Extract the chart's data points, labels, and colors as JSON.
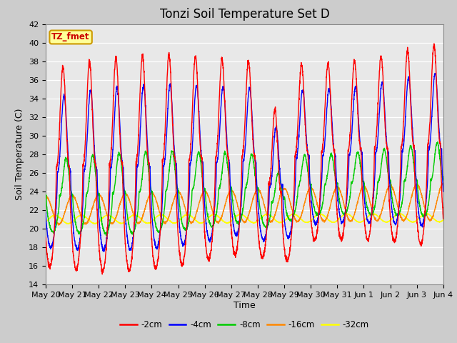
{
  "title": "Tonzi Soil Temperature Set D",
  "xlabel": "Time",
  "ylabel": "Soil Temperature (C)",
  "ylim": [
    14,
    42
  ],
  "yticks": [
    14,
    16,
    18,
    20,
    22,
    24,
    26,
    28,
    30,
    32,
    34,
    36,
    38,
    40,
    42
  ],
  "xtick_labels": [
    "May 20",
    "May 21",
    "May 22",
    "May 23",
    "May 24",
    "May 25",
    "May 26",
    "May 27",
    "May 28",
    "May 29",
    "May 30",
    "May 31",
    "Jun 1",
    "Jun 2",
    "Jun 3",
    "Jun 4"
  ],
  "legend_labels": [
    "-2cm",
    "-4cm",
    "-8cm",
    "-16cm",
    "-32cm"
  ],
  "line_colors": [
    "#ff0000",
    "#0000ff",
    "#00cc00",
    "#ff8800",
    "#ffff00"
  ],
  "annotation_text": "TZ_fmet",
  "annotation_bg": "#ffff99",
  "annotation_border": "#cc9900",
  "plot_bg": "#e8e8e8",
  "fig_bg": "#cccccc",
  "grid_color": "#ffffff",
  "title_fontsize": 12,
  "label_fontsize": 9,
  "tick_fontsize": 8
}
